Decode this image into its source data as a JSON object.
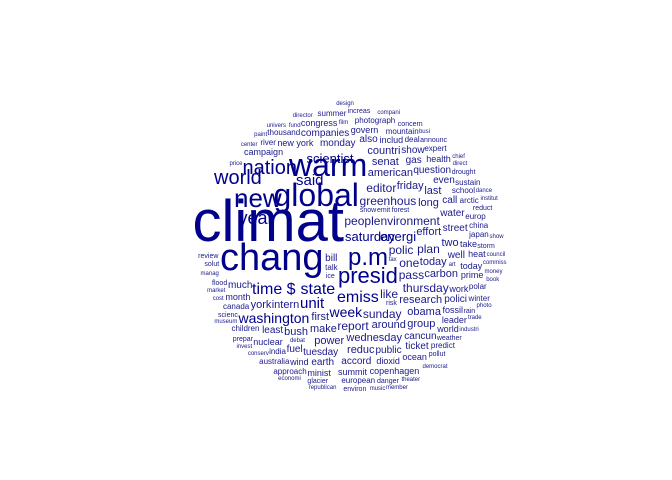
{
  "colors": {
    "primary": "#00008b",
    "secondary": "#1a1a8c",
    "background": "#ffffff"
  },
  "words": [
    "climat",
    "chang",
    "warm",
    "global",
    "new",
    "p.m",
    "presid",
    "nation",
    "world",
    "year",
    "time $",
    "state",
    "emiss",
    "said",
    "unit",
    "washington",
    "week",
    "scientist",
    "saturday",
    "energi",
    "peopl",
    "greenhous",
    "environment",
    "polic",
    "like",
    "one",
    "sunday",
    "pass",
    "editor",
    "report",
    "plan",
    "thursday",
    "effort",
    "research",
    "american",
    "around",
    "make",
    "wednesday",
    "friday",
    "first",
    "today",
    "obama",
    "long",
    "carbon",
    "power",
    "senat",
    "bush",
    "intern",
    "two",
    "reduc",
    "group",
    "countri",
    "york",
    "last",
    "tuesday",
    "monday",
    "street",
    "question",
    "public",
    "water",
    "well",
    "cancun",
    "accord",
    "gas",
    "also",
    "call",
    "bill",
    "even",
    "much",
    "least",
    "polici",
    "companies",
    "show",
    "fuel",
    "earth",
    "ticket",
    "take",
    "work",
    "new york",
    "dioxid",
    "includ",
    "today",
    "fossil",
    "summit",
    "govern",
    "month",
    "nuclear",
    "heat",
    "copenhagen",
    "minist",
    "prime",
    "congress",
    "campaign",
    "leader",
    "ocean",
    "wind",
    "health",
    "world",
    "school",
    "children",
    "photograph",
    "mountain",
    "arctic",
    "european",
    "europ",
    "china",
    "india",
    "australia",
    "canada",
    "japan",
    "sustain",
    "thousand",
    "polar",
    "approach",
    "deal",
    "talk",
    "expert",
    "predict",
    "winter",
    "summer",
    "river",
    "forest",
    "snow",
    "rain",
    "flood",
    "drought",
    "storm",
    "weather",
    "ice",
    "glacier",
    "increas",
    "risk",
    "danger",
    "concern",
    "solut",
    "reduct",
    "emit",
    "pollut",
    "environ",
    "scienc",
    "review",
    "prepar",
    "announc",
    "direct",
    "republican",
    "democrat",
    "debat",
    "conserv",
    "fund",
    "cost",
    "market",
    "industri",
    "compani",
    "economi",
    "busi",
    "money",
    "price",
    "tax",
    "trade",
    "invest",
    "manag",
    "chief",
    "director",
    "member",
    "council",
    "commiss",
    "institut",
    "univers",
    "museum",
    "center",
    "theater",
    "music",
    "art",
    "show",
    "film",
    "book",
    "paint",
    "design",
    "photo",
    "dance"
  ]
}
